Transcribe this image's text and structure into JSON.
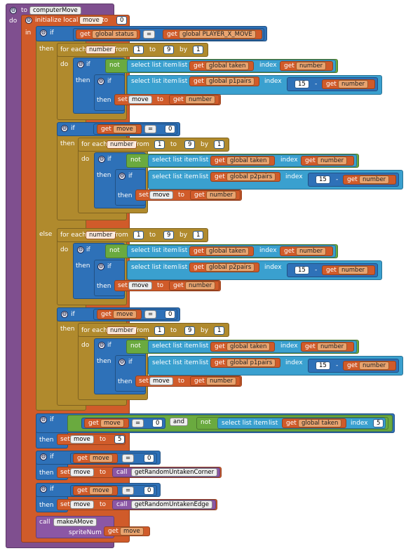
{
  "procedure": {
    "keyword": "to",
    "name": "computerMove",
    "do_label": "do"
  },
  "init": {
    "label": "initialize local",
    "var": "move",
    "to_label": "to",
    "value": "0",
    "in_label": "in"
  },
  "kw": {
    "if": "if",
    "then": "then",
    "else": "else",
    "do": "do",
    "for_each": "for each",
    "from": "from",
    "to": "to",
    "by": "by",
    "not": "not",
    "select": "select list item",
    "list": "list",
    "index": "index",
    "get": "get",
    "set": "set",
    "call": "call",
    "and": "and",
    "eq": "=",
    "minus": "-",
    "arrow": "▾"
  },
  "vars": {
    "status": "global status",
    "player_x": "global PLAYER_X_MOVE",
    "taken": "global taken",
    "p1pairs": "global p1pairs",
    "p2pairs": "global p2pairs",
    "number": "number",
    "move": "move"
  },
  "nums": {
    "one": "1",
    "nine": "9",
    "fifteen": "15",
    "zero": "0",
    "five": "5"
  },
  "calls": {
    "corner": "getRandomUntakenCorner",
    "edge": "getRandomUntakenEdge",
    "make": "makeAMove",
    "sprite_arg": "spriteNum"
  },
  "colors": {
    "procedure": "#7f4f8f",
    "variable": "#d05b2a",
    "control": "#b08a2d",
    "logic": "#2e71b8",
    "list": "#3aa0cf",
    "not": "#6aaa3f"
  }
}
